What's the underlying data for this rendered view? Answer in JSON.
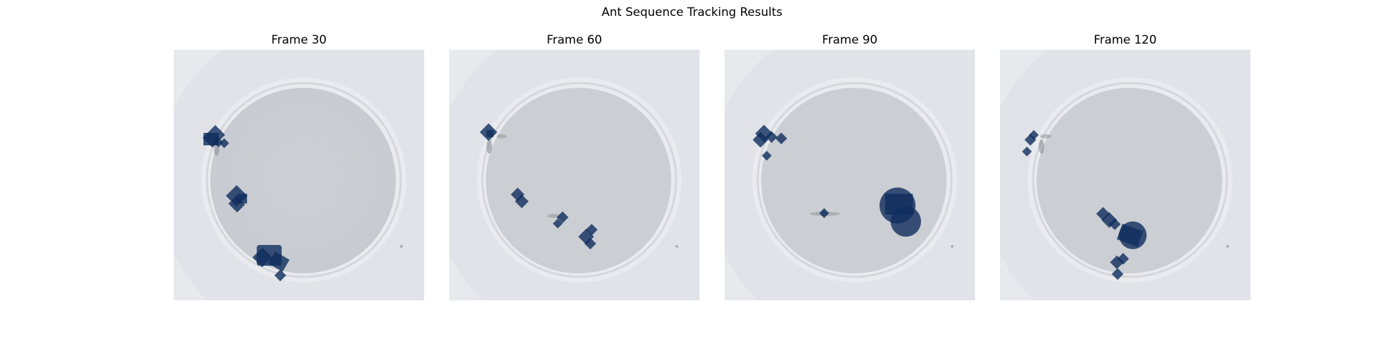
{
  "figure": {
    "title": "Ant Sequence Tracking Results"
  },
  "panels": [
    {
      "title": "Frame 30"
    },
    {
      "title": "Frame 60"
    },
    {
      "title": "Frame 90"
    },
    {
      "title": "Frame 120"
    }
  ],
  "colors": {
    "background": "#e8eaee",
    "dish_interior": "#cfd1d6",
    "dish_rim": "#eef0f3",
    "ant_shadow": "#8c8f96",
    "mask_fill": "#0f2d5c"
  },
  "mask_style": "semi-transparent dark blue pixel blobs over tracked ants"
}
